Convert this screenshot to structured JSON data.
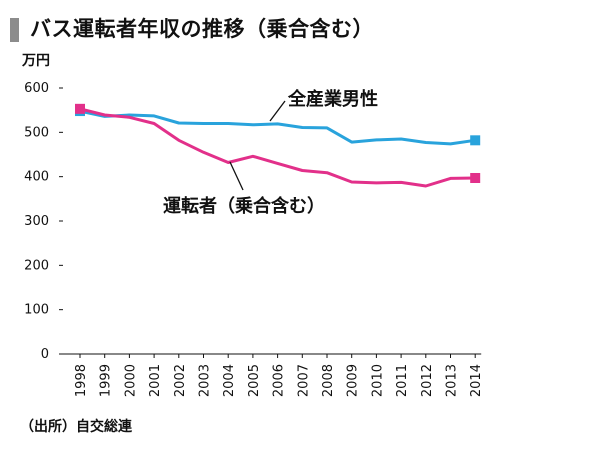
{
  "header": {
    "title": "バス運転者年収の推移（乗合含む）"
  },
  "footer": {
    "source": "（出所）自交総連"
  },
  "chart_data": {
    "type": "line",
    "title": "バス運転者年収の推移（乗合含む）",
    "ylabel": "万円",
    "xlabel": "",
    "ylim": [
      0,
      600
    ],
    "yticks": [
      "0",
      "100",
      "200",
      "300",
      "400",
      "500",
      "600"
    ],
    "grid": false,
    "x": [
      "1998",
      "1999",
      "2000",
      "2001",
      "2002",
      "2003",
      "2004",
      "2005",
      "2006",
      "2007",
      "2008",
      "2009",
      "2010",
      "2011",
      "2012",
      "2013",
      "2014"
    ],
    "series": [
      {
        "name": "全産業男性",
        "color": "#29a3dc",
        "values": [
          548,
          536,
          539,
          537,
          521,
          520,
          520,
          517,
          519,
          511,
          510,
          478,
          483,
          485,
          477,
          474,
          482
        ]
      },
      {
        "name": "運転者（乗合含む）",
        "color": "#e2308a",
        "values": [
          553,
          539,
          534,
          520,
          482,
          455,
          432,
          446,
          430,
          414,
          409,
          388,
          386,
          387,
          379,
          396,
          397
        ]
      }
    ]
  }
}
